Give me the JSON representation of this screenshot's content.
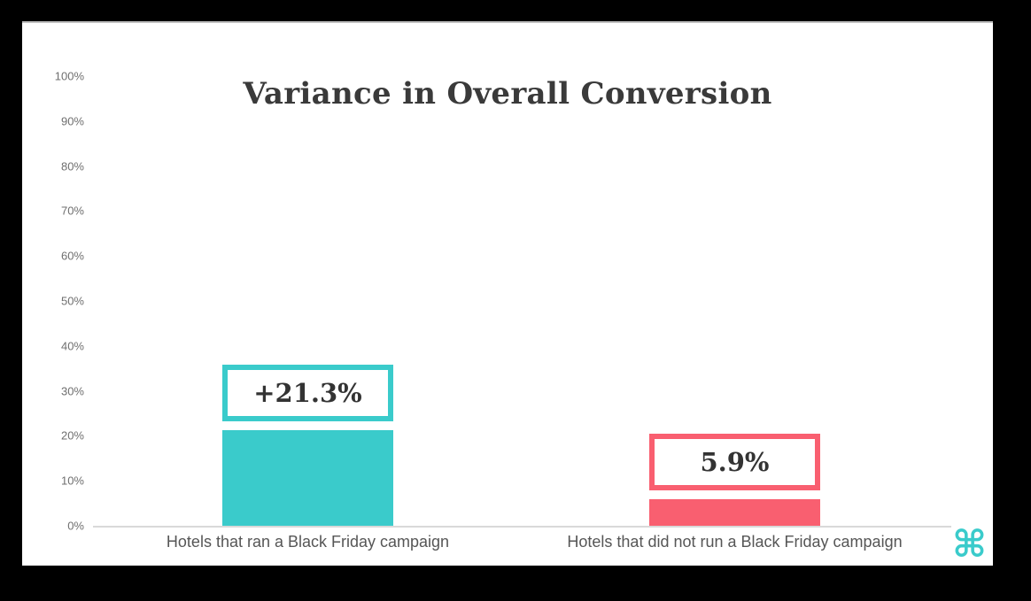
{
  "frame": {
    "background_color": "#000000",
    "panel_color": "#ffffff"
  },
  "chart_data": {
    "type": "bar",
    "title": "Variance in Overall Conversion",
    "categories": [
      "Hotels that ran a Black Friday campaign",
      "Hotels that did not run a Black Friday campaign"
    ],
    "values": [
      21.3,
      5.9
    ],
    "bar_labels": [
      "+21.3%",
      "5.9%"
    ],
    "bar_colors": [
      "#3ACBCB",
      "#F95F70"
    ],
    "xlabel": "",
    "ylabel": "",
    "ylim": [
      0,
      100
    ],
    "y_tick_step": 10,
    "y_ticks": [
      "100%",
      "90%",
      "80%",
      "70%",
      "60%",
      "50%",
      "40%",
      "30%",
      "20%",
      "10%",
      "0%"
    ],
    "grid": false,
    "legend": "none",
    "value_label_style": "boxed-callout-above-bar"
  },
  "branding": {
    "logo_glyph": "⌘",
    "logo_color": "#3ACBCB"
  }
}
